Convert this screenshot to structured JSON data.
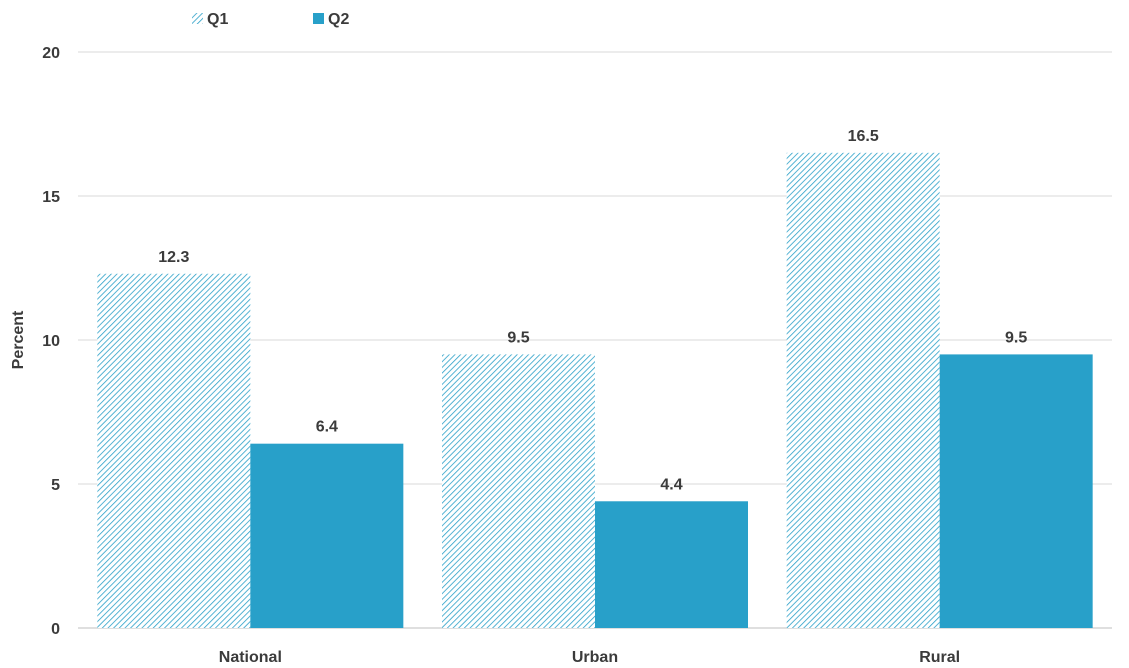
{
  "chart_data": {
    "type": "bar",
    "categories": [
      "National",
      "Urban",
      "Rural"
    ],
    "series": [
      {
        "name": "Q1",
        "values": [
          12.3,
          9.5,
          16.5
        ],
        "color": "#2aa0c8",
        "fill": "hatched"
      },
      {
        "name": "Q2",
        "values": [
          6.4,
          4.4,
          9.5
        ],
        "color": "#28a0c9",
        "fill": "solid"
      }
    ],
    "data_labels": [
      [
        "12.3",
        "9.5",
        "16.5"
      ],
      [
        "6.4",
        "4.4",
        "9.5"
      ]
    ],
    "ylabel": "Percent",
    "xlabel": "",
    "title": "",
    "ylim": [
      0,
      20
    ],
    "yticks": [
      0,
      5,
      10,
      15,
      20
    ],
    "ytick_labels": [
      "0",
      "5",
      "10",
      "15",
      "20"
    ],
    "grid": true,
    "legend_position": "top-left",
    "gridline_color": "#d9d9d9",
    "text_color": "#3b3b3b"
  }
}
